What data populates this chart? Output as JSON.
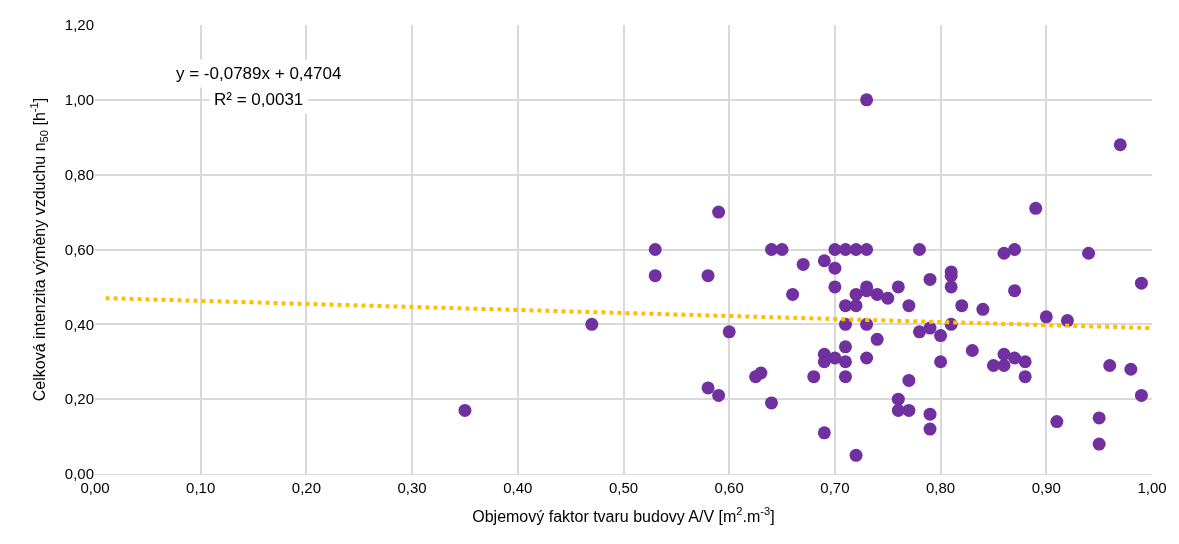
{
  "chart_data": {
    "type": "scatter",
    "xlabel": "Objemový faktor tvaru budovy A/V [m$^{2}$.m$^{-3}$]",
    "ylabel": "Celková intenzita výměny vzduchu n$_{50}$ [h$^{-1}$]",
    "xlim": [
      0,
      1
    ],
    "ylim": [
      0,
      1.2
    ],
    "xticks": [
      {
        "value": 0,
        "label": "0,00"
      },
      {
        "value": 0.1,
        "label": "0,10"
      },
      {
        "value": 0.2,
        "label": "0,20"
      },
      {
        "value": 0.3,
        "label": "0,30"
      },
      {
        "value": 0.4,
        "label": "0,40"
      },
      {
        "value": 0.5,
        "label": "0,50"
      },
      {
        "value": 0.6,
        "label": "0,60"
      },
      {
        "value": 0.7,
        "label": "0,70"
      },
      {
        "value": 0.8,
        "label": "0,80"
      },
      {
        "value": 0.9,
        "label": "0,90"
      },
      {
        "value": 1,
        "label": "1,00"
      }
    ],
    "yticks": [
      {
        "value": 0,
        "label": "0,00"
      },
      {
        "value": 0.2,
        "label": "0,20"
      },
      {
        "value": 0.4,
        "label": "0,40"
      },
      {
        "value": 0.6,
        "label": "0,60"
      },
      {
        "value": 0.8,
        "label": "0,80"
      },
      {
        "value": 1,
        "label": "1,00"
      },
      {
        "value": 1.2,
        "label": "1,20"
      }
    ],
    "grid": true,
    "annotations": [
      "y = -0,0789x + 0,4704",
      "R² = 0,0031"
    ],
    "series": [
      {
        "color": "#7030a0",
        "x": [
          0.35,
          0.47,
          0.53,
          0.53,
          0.58,
          0.58,
          0.59,
          0.59,
          0.6,
          0.625,
          0.63,
          0.64,
          0.65,
          0.64,
          0.66,
          0.67,
          0.68,
          0.69,
          0.69,
          0.69,
          0.69,
          0.7,
          0.7,
          0.7,
          0.7,
          0.71,
          0.71,
          0.71,
          0.71,
          0.71,
          0.71,
          0.72,
          0.72,
          0.72,
          0.72,
          0.73,
          0.73,
          0.73,
          0.73,
          0.73,
          0.73,
          0.74,
          0.74,
          0.75,
          0.76,
          0.76,
          0.76,
          0.77,
          0.77,
          0.77,
          0.78,
          0.78,
          0.79,
          0.79,
          0.79,
          0.79,
          0.8,
          0.8,
          0.81,
          0.81,
          0.81,
          0.81,
          0.82,
          0.83,
          0.84,
          0.85,
          0.86,
          0.86,
          0.86,
          0.87,
          0.87,
          0.87,
          0.88,
          0.88,
          0.89,
          0.9,
          0.91,
          0.92,
          0.94,
          0.95,
          0.95,
          0.96,
          0.97,
          0.98,
          0.99,
          0.99
        ],
        "values": [
          0.17,
          0.4,
          0.6,
          0.53,
          0.53,
          0.23,
          0.7,
          0.21,
          0.38,
          0.26,
          0.27,
          0.6,
          0.6,
          0.19,
          0.48,
          0.56,
          0.26,
          0.57,
          0.32,
          0.3,
          0.11,
          0.6,
          0.55,
          0.5,
          0.31,
          0.6,
          0.45,
          0.4,
          0.34,
          0.3,
          0.26,
          0.6,
          0.48,
          0.45,
          0.05,
          0.6,
          0.5,
          0.49,
          0.4,
          0.31,
          1.0,
          0.48,
          0.36,
          0.47,
          0.5,
          0.2,
          0.17,
          0.45,
          0.25,
          0.17,
          0.6,
          0.38,
          0.52,
          0.39,
          0.16,
          0.12,
          0.37,
          0.3,
          0.54,
          0.53,
          0.5,
          0.4,
          0.45,
          0.33,
          0.44,
          0.29,
          0.59,
          0.32,
          0.29,
          0.6,
          0.49,
          0.31,
          0.3,
          0.26,
          0.71,
          0.42,
          0.14,
          0.41,
          0.59,
          0.15,
          0.08,
          0.29,
          0.88,
          0.28,
          0.51,
          0.21
        ]
      },
      {
        "type": "line",
        "color": "#ffc000",
        "line_style": "dotted",
        "marker": "none",
        "x": [
          0.01,
          1.0
        ],
        "values": [
          0.47,
          0.39
        ]
      }
    ]
  }
}
